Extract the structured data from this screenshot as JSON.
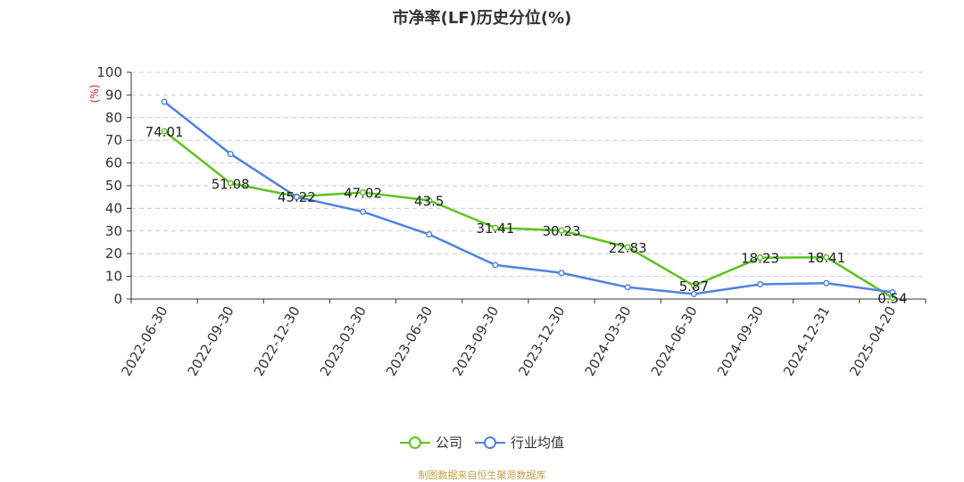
{
  "chart_data": {
    "type": "line",
    "title": "市净率(LF)历史分位(%)",
    "ylabel": "(%)",
    "xlabel": "",
    "categories": [
      "2022-06-30",
      "2022-09-30",
      "2022-12-30",
      "2023-03-30",
      "2023-06-30",
      "2023-09-30",
      "2023-12-30",
      "2024-03-30",
      "2024-06-30",
      "2024-09-30",
      "2024-12-31",
      "2025-04-20"
    ],
    "ylim": [
      0,
      100
    ],
    "yticks": [
      0,
      10,
      20,
      30,
      40,
      50,
      60,
      70,
      80,
      90,
      100
    ],
    "grid": true,
    "legend_position": "bottom",
    "series": [
      {
        "name": "公司",
        "color": "#5cc31e",
        "values": [
          74.01,
          51.08,
          45.22,
          47.02,
          43.5,
          31.41,
          30.23,
          22.83,
          5.87,
          18.23,
          18.41,
          0.54
        ],
        "labels": [
          "74.01",
          "51.08",
          "45.22",
          "47.02",
          "43.5",
          "31.41",
          "30.23",
          "22.83",
          "5.87",
          "18.23",
          "18.41",
          "0.54"
        ]
      },
      {
        "name": "行业均值",
        "color": "#4f82e0",
        "values": [
          87,
          64,
          45,
          38.5,
          28.5,
          15,
          11.5,
          5.2,
          2.2,
          6.5,
          7,
          3
        ]
      }
    ]
  },
  "footer": "制图数据来自恒生聚源数据库"
}
